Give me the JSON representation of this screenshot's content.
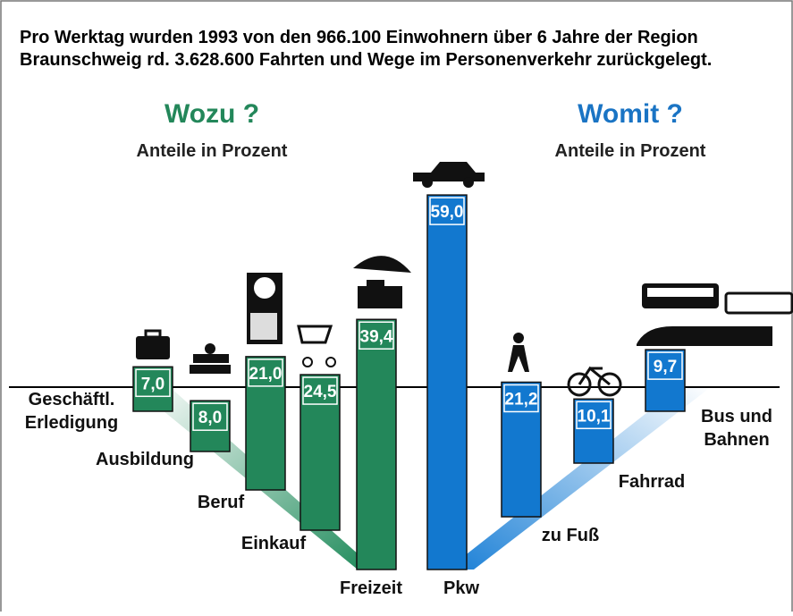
{
  "header": {
    "lines": [
      "Pro Werktag wurden 1993 von den 966.100 Einwohnern über 6 Jahre der Region",
      "Braunschweig rd. 3.628.600 Fahrten und Wege im Personenverkehr zurückgelegt."
    ]
  },
  "chart_data": [
    {
      "type": "bar",
      "title": "Wozu ?",
      "subtitle": "Anteile in Prozent",
      "color": "#23875a",
      "title_color": "#23875a",
      "categories": [
        [
          "Geschäftl.",
          "Erledigung"
        ],
        [
          "Ausbildung"
        ],
        [
          "Beruf"
        ],
        [
          "Einkauf"
        ],
        [
          "Freizeit"
        ]
      ],
      "values": [
        7.0,
        8.0,
        21.0,
        24.5,
        39.4
      ],
      "value_labels": [
        "7,0",
        "8,0",
        "21,0",
        "24,5",
        "39,4"
      ]
    },
    {
      "type": "bar",
      "title": "Womit ?",
      "subtitle": "Anteile in Prozent",
      "color": "#1278cf",
      "title_color": "#1a74c4",
      "categories": [
        [
          "Pkw"
        ],
        [
          "zu Fuß"
        ],
        [
          "Fahrrad"
        ],
        [
          "Bus und",
          "Bahnen"
        ]
      ],
      "values": [
        59.0,
        21.2,
        10.1,
        9.7
      ],
      "value_labels": [
        "59,0",
        "21,2",
        "10,1",
        "9,7"
      ]
    }
  ]
}
